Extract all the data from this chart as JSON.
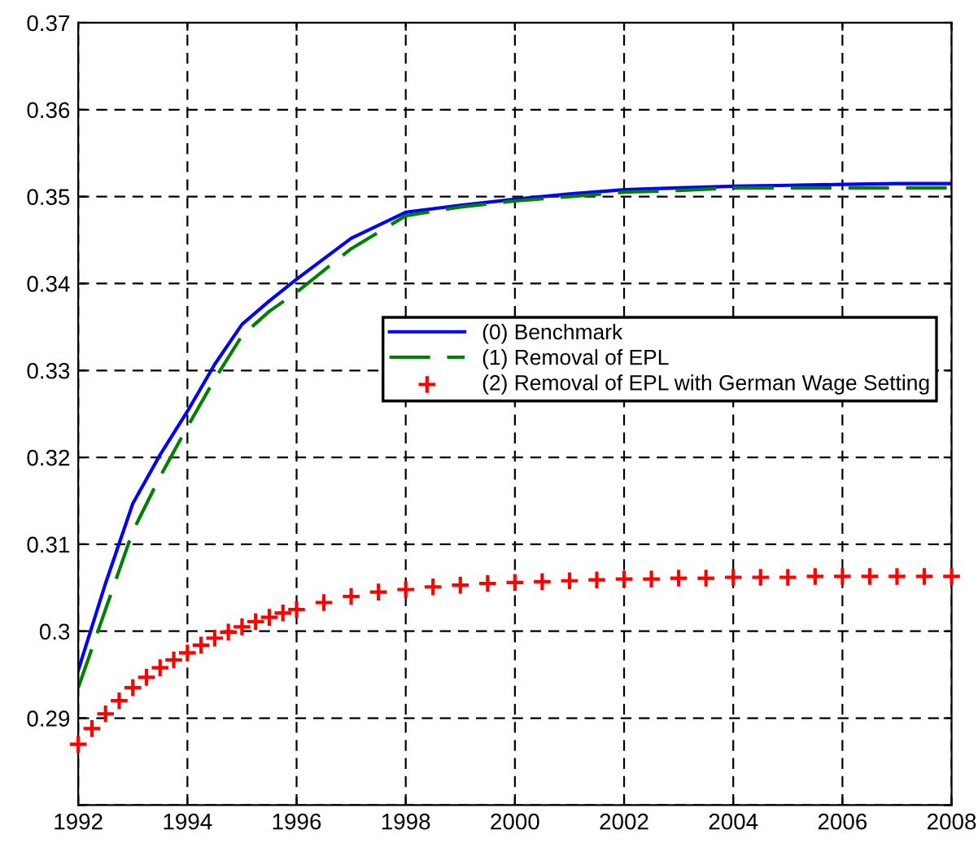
{
  "chart_data": {
    "type": "line",
    "xlim": [
      1992,
      2008
    ],
    "xticks": [
      1992,
      1994,
      1996,
      1998,
      2000,
      2002,
      2004,
      2006,
      2008
    ],
    "ylim": [
      0.28,
      0.37
    ],
    "yticks": [
      {
        "value": 0.28,
        "label": null
      },
      0.29,
      0.3,
      0.31,
      0.32,
      0.33,
      0.34,
      0.35,
      0.36,
      0.37
    ],
    "grid": true,
    "legend": "right",
    "series": [
      {
        "name": "(0) Benchmark",
        "color": "#0000ff",
        "line_style": "solid",
        "marker": "none",
        "x": [
          1992,
          1992.5,
          1993,
          1993.5,
          1994,
          1994.5,
          1995,
          1995.5,
          1996,
          1997,
          1998,
          1999,
          2000,
          2001,
          2002,
          2003,
          2004,
          2005,
          2006,
          2007,
          2008
        ],
        "values": [
          0.2955,
          0.3055,
          0.3147,
          0.3203,
          0.3253,
          0.3307,
          0.3353,
          0.338,
          0.3405,
          0.3452,
          0.3482,
          0.349,
          0.3497,
          0.3503,
          0.3508,
          0.351,
          0.3512,
          0.3513,
          0.3514,
          0.3515,
          0.3515
        ]
      },
      {
        "name": "(1) Removal of EPL",
        "color": "#008000",
        "line_style": "dashed",
        "marker": "none",
        "x": [
          1992,
          1992.5,
          1993,
          1993.5,
          1994,
          1994.5,
          1995,
          1995.5,
          1996,
          1997,
          1998,
          1999,
          2000,
          2001,
          2002,
          2003,
          2004,
          2005,
          2006,
          2007,
          2008
        ],
        "values": [
          0.2935,
          0.3025,
          0.3115,
          0.3178,
          0.3235,
          0.329,
          0.334,
          0.3368,
          0.339,
          0.344,
          0.3478,
          0.3488,
          0.3495,
          0.35,
          0.3505,
          0.3507,
          0.351,
          0.351,
          0.351,
          0.351,
          0.351
        ]
      },
      {
        "name": "(2) Removal of EPL with German Wage Setting",
        "color": "#ff0000",
        "type": "scatter",
        "marker": "cross",
        "x": [
          1992,
          1992.25,
          1992.5,
          1992.75,
          1993,
          1993.25,
          1993.5,
          1993.75,
          1994,
          1994.25,
          1994.5,
          1994.75,
          1995,
          1995.25,
          1995.5,
          1995.75,
          1996,
          1996.5,
          1997,
          1997.5,
          1998,
          1998.5,
          1999,
          1999.5,
          2000,
          2000.5,
          2001,
          2001.5,
          2002,
          2002.5,
          2003,
          2003.5,
          2004,
          2004.5,
          2005,
          2005.5,
          2006,
          2006.5,
          2007,
          2007.5,
          2008
        ],
        "values": [
          0.287,
          0.2888,
          0.2905,
          0.292,
          0.2935,
          0.2947,
          0.2958,
          0.2967,
          0.2975,
          0.2984,
          0.2992,
          0.2999,
          0.3005,
          0.3011,
          0.3016,
          0.3021,
          0.3025,
          0.3033,
          0.304,
          0.3045,
          0.3048,
          0.3051,
          0.3053,
          0.3055,
          0.3056,
          0.3057,
          0.3058,
          0.3059,
          0.306,
          0.306,
          0.3061,
          0.3061,
          0.3062,
          0.3062,
          0.3062,
          0.3063,
          0.3063,
          0.3063,
          0.3063,
          0.3063,
          0.3063
        ]
      }
    ]
  }
}
